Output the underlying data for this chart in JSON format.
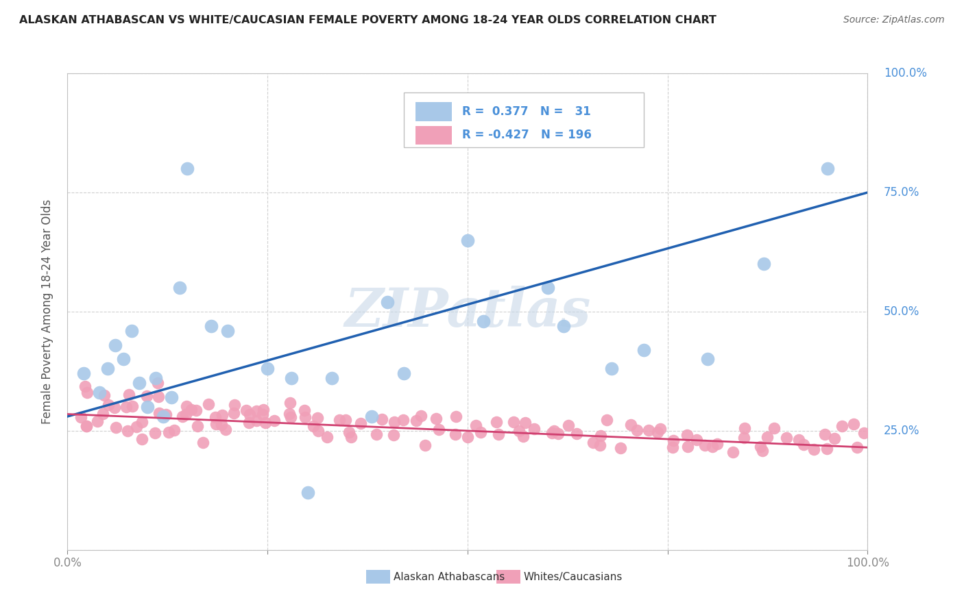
{
  "title": "ALASKAN ATHABASCAN VS WHITE/CAUCASIAN FEMALE POVERTY AMONG 18-24 YEAR OLDS CORRELATION CHART",
  "source": "Source: ZipAtlas.com",
  "ylabel": "Female Poverty Among 18-24 Year Olds",
  "watermark": "ZIPatlas",
  "xlim": [
    0,
    1
  ],
  "ylim": [
    0,
    1
  ],
  "legend_labels": [
    "Alaskan Athabascans",
    "Whites/Caucasians"
  ],
  "legend_R": [
    "0.377",
    "-0.427"
  ],
  "legend_N": [
    "31",
    "196"
  ],
  "blue_color": "#a8c8e8",
  "pink_color": "#f0a0b8",
  "blue_line_color": "#2060b0",
  "pink_line_color": "#d04070",
  "axis_label_color": "#4a90d9",
  "title_color": "#333333",
  "grid_color": "#d0d0d0",
  "spine_color": "#c0c0c0",
  "blue_scatter_x": [
    0.02,
    0.04,
    0.05,
    0.06,
    0.07,
    0.08,
    0.09,
    0.1,
    0.11,
    0.12,
    0.13,
    0.14,
    0.15,
    0.18,
    0.2,
    0.25,
    0.28,
    0.3,
    0.33,
    0.38,
    0.4,
    0.42,
    0.5,
    0.52,
    0.6,
    0.62,
    0.68,
    0.72,
    0.8,
    0.87,
    0.95
  ],
  "blue_scatter_y": [
    0.37,
    0.33,
    0.38,
    0.43,
    0.4,
    0.46,
    0.35,
    0.3,
    0.36,
    0.28,
    0.32,
    0.55,
    0.8,
    0.47,
    0.46,
    0.38,
    0.36,
    0.12,
    0.36,
    0.28,
    0.52,
    0.37,
    0.65,
    0.48,
    0.55,
    0.47,
    0.38,
    0.42,
    0.4,
    0.6,
    0.8
  ],
  "pink_scatter_x": [
    0.01,
    0.02,
    0.02,
    0.03,
    0.03,
    0.04,
    0.04,
    0.05,
    0.05,
    0.06,
    0.06,
    0.07,
    0.07,
    0.08,
    0.08,
    0.09,
    0.09,
    0.1,
    0.1,
    0.11,
    0.11,
    0.12,
    0.12,
    0.13,
    0.13,
    0.14,
    0.14,
    0.15,
    0.15,
    0.16,
    0.16,
    0.17,
    0.17,
    0.18,
    0.18,
    0.19,
    0.19,
    0.2,
    0.2,
    0.21,
    0.21,
    0.22,
    0.22,
    0.23,
    0.23,
    0.24,
    0.24,
    0.25,
    0.25,
    0.26,
    0.27,
    0.28,
    0.28,
    0.29,
    0.3,
    0.3,
    0.31,
    0.32,
    0.33,
    0.34,
    0.35,
    0.35,
    0.36,
    0.37,
    0.38,
    0.39,
    0.4,
    0.41,
    0.42,
    0.43,
    0.44,
    0.45,
    0.46,
    0.47,
    0.48,
    0.49,
    0.5,
    0.51,
    0.52,
    0.53,
    0.54,
    0.55,
    0.56,
    0.57,
    0.58,
    0.59,
    0.6,
    0.61,
    0.62,
    0.63,
    0.64,
    0.65,
    0.66,
    0.67,
    0.68,
    0.69,
    0.7,
    0.71,
    0.72,
    0.73,
    0.74,
    0.75,
    0.76,
    0.77,
    0.78,
    0.79,
    0.8,
    0.81,
    0.82,
    0.83,
    0.84,
    0.85,
    0.86,
    0.87,
    0.88,
    0.89,
    0.9,
    0.91,
    0.92,
    0.93,
    0.94,
    0.95,
    0.96,
    0.97,
    0.98,
    0.99,
    1.0
  ],
  "pink_scatter_y": [
    0.3,
    0.34,
    0.27,
    0.32,
    0.28,
    0.31,
    0.26,
    0.29,
    0.33,
    0.27,
    0.31,
    0.3,
    0.26,
    0.29,
    0.32,
    0.28,
    0.25,
    0.3,
    0.27,
    0.31,
    0.26,
    0.28,
    0.33,
    0.27,
    0.3,
    0.29,
    0.26,
    0.31,
    0.28,
    0.27,
    0.3,
    0.25,
    0.28,
    0.27,
    0.3,
    0.26,
    0.28,
    0.29,
    0.25,
    0.27,
    0.3,
    0.26,
    0.28,
    0.29,
    0.25,
    0.27,
    0.3,
    0.26,
    0.28,
    0.25,
    0.27,
    0.29,
    0.26,
    0.28,
    0.25,
    0.27,
    0.26,
    0.28,
    0.25,
    0.27,
    0.26,
    0.28,
    0.25,
    0.27,
    0.26,
    0.25,
    0.27,
    0.24,
    0.26,
    0.25,
    0.27,
    0.24,
    0.26,
    0.25,
    0.24,
    0.26,
    0.25,
    0.24,
    0.26,
    0.25,
    0.24,
    0.26,
    0.25,
    0.24,
    0.25,
    0.24,
    0.26,
    0.25,
    0.24,
    0.25,
    0.24,
    0.25,
    0.23,
    0.24,
    0.25,
    0.23,
    0.24,
    0.25,
    0.23,
    0.24,
    0.23,
    0.24,
    0.23,
    0.24,
    0.23,
    0.22,
    0.24,
    0.23,
    0.22,
    0.23,
    0.22,
    0.24,
    0.23,
    0.22,
    0.23,
    0.24,
    0.22,
    0.23,
    0.24,
    0.23,
    0.22,
    0.23,
    0.24,
    0.25,
    0.24,
    0.25,
    0.26
  ],
  "blue_trend_y0": 0.28,
  "blue_trend_y1": 0.75,
  "pink_trend_y0": 0.285,
  "pink_trend_y1": 0.215,
  "background_color": "#ffffff"
}
